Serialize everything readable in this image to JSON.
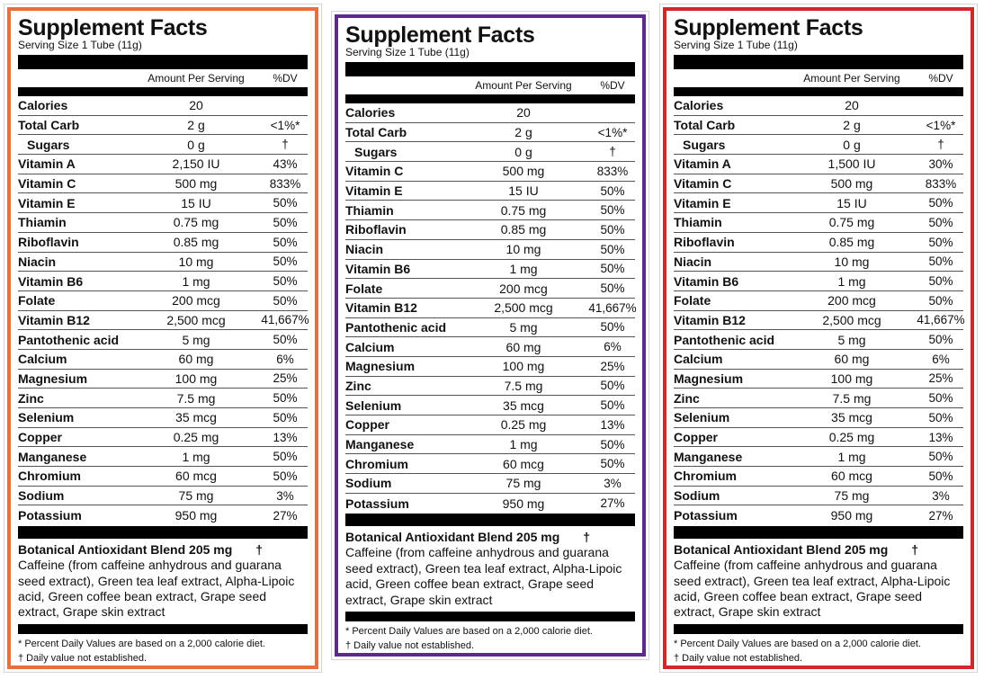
{
  "panels": [
    {
      "border_color": "#e8703f",
      "title": "Supplement Facts",
      "serving": "Serving Size 1 Tube (11g)",
      "header_amount": "Amount Per Serving",
      "header_dv": "%DV",
      "rows": [
        [
          "Calories",
          "20",
          ""
        ],
        [
          "Total Carb",
          "2 g",
          "<1%*"
        ],
        [
          "Sugars",
          "0 g",
          "†"
        ],
        [
          "Vitamin A",
          "2,150 IU",
          "43%"
        ],
        [
          "Vitamin C",
          "500 mg",
          "833%"
        ],
        [
          "Vitamin E",
          "15 IU",
          "50%"
        ],
        [
          "Thiamin",
          "0.75 mg",
          "50%"
        ],
        [
          "Riboflavin",
          "0.85 mg",
          "50%"
        ],
        [
          "Niacin",
          "10 mg",
          "50%"
        ],
        [
          "Vitamin B6",
          "1 mg",
          "50%"
        ],
        [
          "Folate",
          "200 mcg",
          "50%"
        ],
        [
          "Vitamin B12",
          "2,500 mcg",
          "41,667%"
        ],
        [
          "Pantothenic acid",
          "5 mg",
          "50%"
        ],
        [
          "Calcium",
          "60 mg",
          "6%"
        ],
        [
          "Magnesium",
          "100 mg",
          "25%"
        ],
        [
          "Zinc",
          "7.5 mg",
          "50%"
        ],
        [
          "Selenium",
          "35 mcg",
          "50%"
        ],
        [
          "Copper",
          "0.25 mg",
          "13%"
        ],
        [
          "Manganese",
          "1 mg",
          "50%"
        ],
        [
          "Chromium",
          "60 mcg",
          "50%"
        ],
        [
          "Sodium",
          "75 mg",
          "3%"
        ],
        [
          "Potassium",
          "950 mg",
          "27%"
        ]
      ],
      "blend_title": "Botanical Antioxidant Blend 205 mg",
      "blend_dagger": "†",
      "blend_text": "Caffeine (from caffeine anhydrous and guarana seed extract), Green tea leaf extract, Alpha-Lipoic acid, Green coffee bean extract, Grape seed extract, Grape skin extract",
      "footnote_1": "* Percent Daily Values are based on a 2,000 calorie diet.",
      "footnote_2": "† Daily value not established."
    },
    {
      "border_color": "#5b2a8c",
      "title": "Supplement Facts",
      "serving": "Serving Size 1 Tube (11g)",
      "header_amount": "Amount Per Serving",
      "header_dv": "%DV",
      "rows": [
        [
          "Calories",
          "20",
          ""
        ],
        [
          "Total Carb",
          "2 g",
          "<1%*"
        ],
        [
          "Sugars",
          "0 g",
          "†"
        ],
        [
          "Vitamin C",
          "500 mg",
          "833%"
        ],
        [
          "Vitamin E",
          "15 IU",
          "50%"
        ],
        [
          "Thiamin",
          "0.75 mg",
          "50%"
        ],
        [
          "Riboflavin",
          "0.85 mg",
          "50%"
        ],
        [
          "Niacin",
          "10 mg",
          "50%"
        ],
        [
          "Vitamin B6",
          "1 mg",
          "50%"
        ],
        [
          "Folate",
          "200 mcg",
          "50%"
        ],
        [
          "Vitamin B12",
          "2,500 mcg",
          "41,667%"
        ],
        [
          "Pantothenic acid",
          "5 mg",
          "50%"
        ],
        [
          "Calcium",
          "60 mg",
          "6%"
        ],
        [
          "Magnesium",
          "100 mg",
          "25%"
        ],
        [
          "Zinc",
          "7.5 mg",
          "50%"
        ],
        [
          "Selenium",
          "35 mcg",
          "50%"
        ],
        [
          "Copper",
          "0.25 mg",
          "13%"
        ],
        [
          "Manganese",
          "1 mg",
          "50%"
        ],
        [
          "Chromium",
          "60 mcg",
          "50%"
        ],
        [
          "Sodium",
          "75 mg",
          "3%"
        ],
        [
          "Potassium",
          "950 mg",
          "27%"
        ]
      ],
      "blend_title": "Botanical Antioxidant Blend 205 mg",
      "blend_dagger": "†",
      "blend_text": "Caffeine (from caffeine anhydrous and guarana seed extract), Green tea leaf extract, Alpha-Lipoic acid, Green coffee bean extract, Grape seed extract, Grape skin extract",
      "footnote_1": "* Percent Daily Values are based on a 2,000 calorie diet.",
      "footnote_2": "† Daily value not established."
    },
    {
      "border_color": "#d6262c",
      "title": "Supplement Facts",
      "serving": "Serving Size 1 Tube (11g)",
      "header_amount": "Amount Per Serving",
      "header_dv": "%DV",
      "rows": [
        [
          "Calories",
          "20",
          ""
        ],
        [
          "Total Carb",
          "2 g",
          "<1%*"
        ],
        [
          "Sugars",
          "0 g",
          "†"
        ],
        [
          "Vitamin A",
          "1,500 IU",
          "30%"
        ],
        [
          "Vitamin C",
          "500 mg",
          "833%"
        ],
        [
          "Vitamin E",
          "15 IU",
          "50%"
        ],
        [
          "Thiamin",
          "0.75 mg",
          "50%"
        ],
        [
          "Riboflavin",
          "0.85 mg",
          "50%"
        ],
        [
          "Niacin",
          "10 mg",
          "50%"
        ],
        [
          "Vitamin B6",
          "1 mg",
          "50%"
        ],
        [
          "Folate",
          "200 mcg",
          "50%"
        ],
        [
          "Vitamin B12",
          "2,500 mcg",
          "41,667%"
        ],
        [
          "Pantothenic acid",
          "5 mg",
          "50%"
        ],
        [
          "Calcium",
          "60 mg",
          "6%"
        ],
        [
          "Magnesium",
          "100 mg",
          "25%"
        ],
        [
          "Zinc",
          "7.5 mg",
          "50%"
        ],
        [
          "Selenium",
          "35 mcg",
          "50%"
        ],
        [
          "Copper",
          "0.25 mg",
          "13%"
        ],
        [
          "Manganese",
          "1 mg",
          "50%"
        ],
        [
          "Chromium",
          "60 mcg",
          "50%"
        ],
        [
          "Sodium",
          "75 mg",
          "3%"
        ],
        [
          "Potassium",
          "950 mg",
          "27%"
        ]
      ],
      "blend_title": "Botanical Antioxidant Blend 205 mg",
      "blend_dagger": "†",
      "blend_text": "Caffeine (from caffeine anhydrous and guarana seed extract), Green tea leaf extract, Alpha-Lipoic acid, Green coffee bean extract, Grape seed extract, Grape skin extract",
      "footnote_1": "* Percent Daily Values are based on a 2,000 calorie diet.",
      "footnote_2": "† Daily value not established."
    }
  ]
}
